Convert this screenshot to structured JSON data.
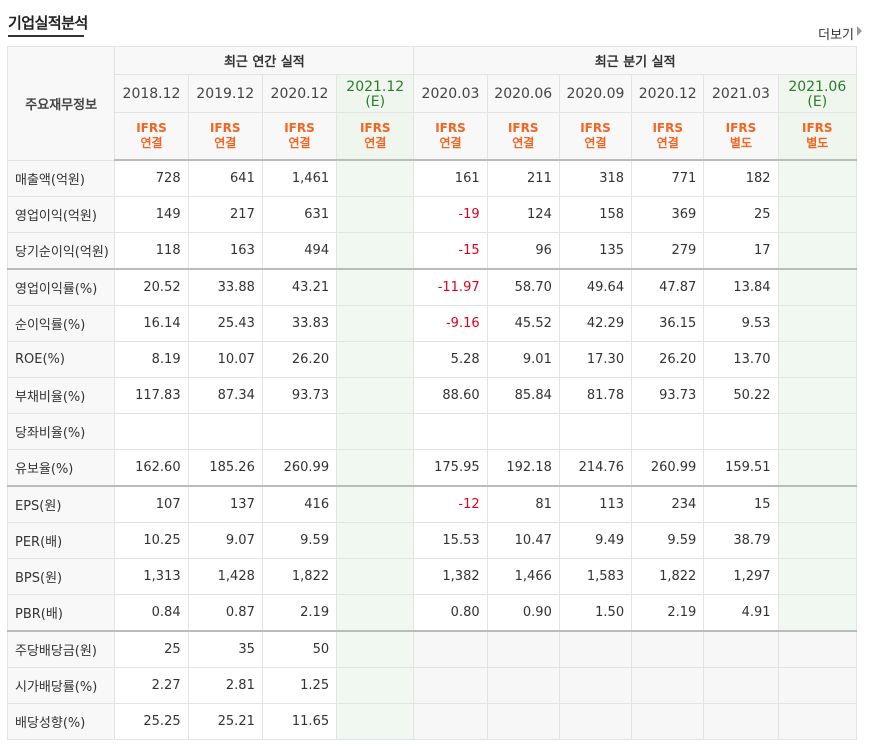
{
  "header": {
    "title": "기업실적분석",
    "more_label": "더보기"
  },
  "table": {
    "corner_label": "주요재무정보",
    "annual_label": "최근 연간 실적",
    "quarter_label": "최근 분기 실적",
    "periods": [
      {
        "date": "2018.12",
        "e": "",
        "ifrs": "IFRS",
        "basis": "연결"
      },
      {
        "date": "2019.12",
        "e": "",
        "ifrs": "IFRS",
        "basis": "연결"
      },
      {
        "date": "2020.12",
        "e": "",
        "ifrs": "IFRS",
        "basis": "연결"
      },
      {
        "date": "2021.12",
        "e": "(E)",
        "ifrs": "IFRS",
        "basis": "연결"
      },
      {
        "date": "2020.03",
        "e": "",
        "ifrs": "IFRS",
        "basis": "연결"
      },
      {
        "date": "2020.06",
        "e": "",
        "ifrs": "IFRS",
        "basis": "연결"
      },
      {
        "date": "2020.09",
        "e": "",
        "ifrs": "IFRS",
        "basis": "연결"
      },
      {
        "date": "2020.12",
        "e": "",
        "ifrs": "IFRS",
        "basis": "연결"
      },
      {
        "date": "2021.03",
        "e": "",
        "ifrs": "IFRS",
        "basis": "별도"
      },
      {
        "date": "2021.06",
        "e": "(E)",
        "ifrs": "IFRS",
        "basis": "별도"
      }
    ],
    "rows": [
      {
        "label": "매출액(억원)",
        "values": [
          "728",
          "641",
          "1,461",
          "",
          "161",
          "211",
          "318",
          "771",
          "182",
          ""
        ]
      },
      {
        "label": "영업이익(억원)",
        "values": [
          "149",
          "217",
          "631",
          "",
          "-19",
          "124",
          "158",
          "369",
          "25",
          ""
        ]
      },
      {
        "label": "당기순이익(억원)",
        "values": [
          "118",
          "163",
          "494",
          "",
          "-15",
          "96",
          "135",
          "279",
          "17",
          ""
        ]
      },
      {
        "label": "영업이익률(%)",
        "values": [
          "20.52",
          "33.88",
          "43.21",
          "",
          "-11.97",
          "58.70",
          "49.64",
          "47.87",
          "13.84",
          ""
        ]
      },
      {
        "label": "순이익률(%)",
        "values": [
          "16.14",
          "25.43",
          "33.83",
          "",
          "-9.16",
          "45.52",
          "42.29",
          "36.15",
          "9.53",
          ""
        ]
      },
      {
        "label": "ROE(%)",
        "values": [
          "8.19",
          "10.07",
          "26.20",
          "",
          "5.28",
          "9.01",
          "17.30",
          "26.20",
          "13.70",
          ""
        ]
      },
      {
        "label": "부채비율(%)",
        "values": [
          "117.83",
          "87.34",
          "93.73",
          "",
          "88.60",
          "85.84",
          "81.78",
          "93.73",
          "50.22",
          ""
        ]
      },
      {
        "label": "당좌비율(%)",
        "values": [
          "",
          "",
          "",
          "",
          "",
          "",
          "",
          "",
          "",
          ""
        ]
      },
      {
        "label": "유보율(%)",
        "values": [
          "162.60",
          "185.26",
          "260.99",
          "",
          "175.95",
          "192.18",
          "214.76",
          "260.99",
          "159.51",
          ""
        ]
      },
      {
        "label": "EPS(원)",
        "values": [
          "107",
          "137",
          "416",
          "",
          "-12",
          "81",
          "113",
          "234",
          "15",
          ""
        ]
      },
      {
        "label": "PER(배)",
        "values": [
          "10.25",
          "9.07",
          "9.59",
          "",
          "15.53",
          "10.47",
          "9.49",
          "9.59",
          "38.79",
          ""
        ]
      },
      {
        "label": "BPS(원)",
        "values": [
          "1,313",
          "1,428",
          "1,822",
          "",
          "1,382",
          "1,466",
          "1,583",
          "1,822",
          "1,297",
          ""
        ]
      },
      {
        "label": "PBR(배)",
        "values": [
          "0.84",
          "0.87",
          "2.19",
          "",
          "0.80",
          "0.90",
          "1.50",
          "2.19",
          "4.91",
          ""
        ]
      },
      {
        "label": "주당배당금(원)",
        "values": [
          "25",
          "35",
          "50",
          "",
          "",
          "",
          "",
          "",
          "",
          ""
        ]
      },
      {
        "label": "시가배당률(%)",
        "values": [
          "2.27",
          "2.81",
          "1.25",
          "",
          "",
          "",
          "",
          "",
          "",
          ""
        ]
      },
      {
        "label": "배당성향(%)",
        "values": [
          "25.25",
          "25.21",
          "11.65",
          "",
          "",
          "",
          "",
          "",
          "",
          ""
        ]
      }
    ]
  }
}
